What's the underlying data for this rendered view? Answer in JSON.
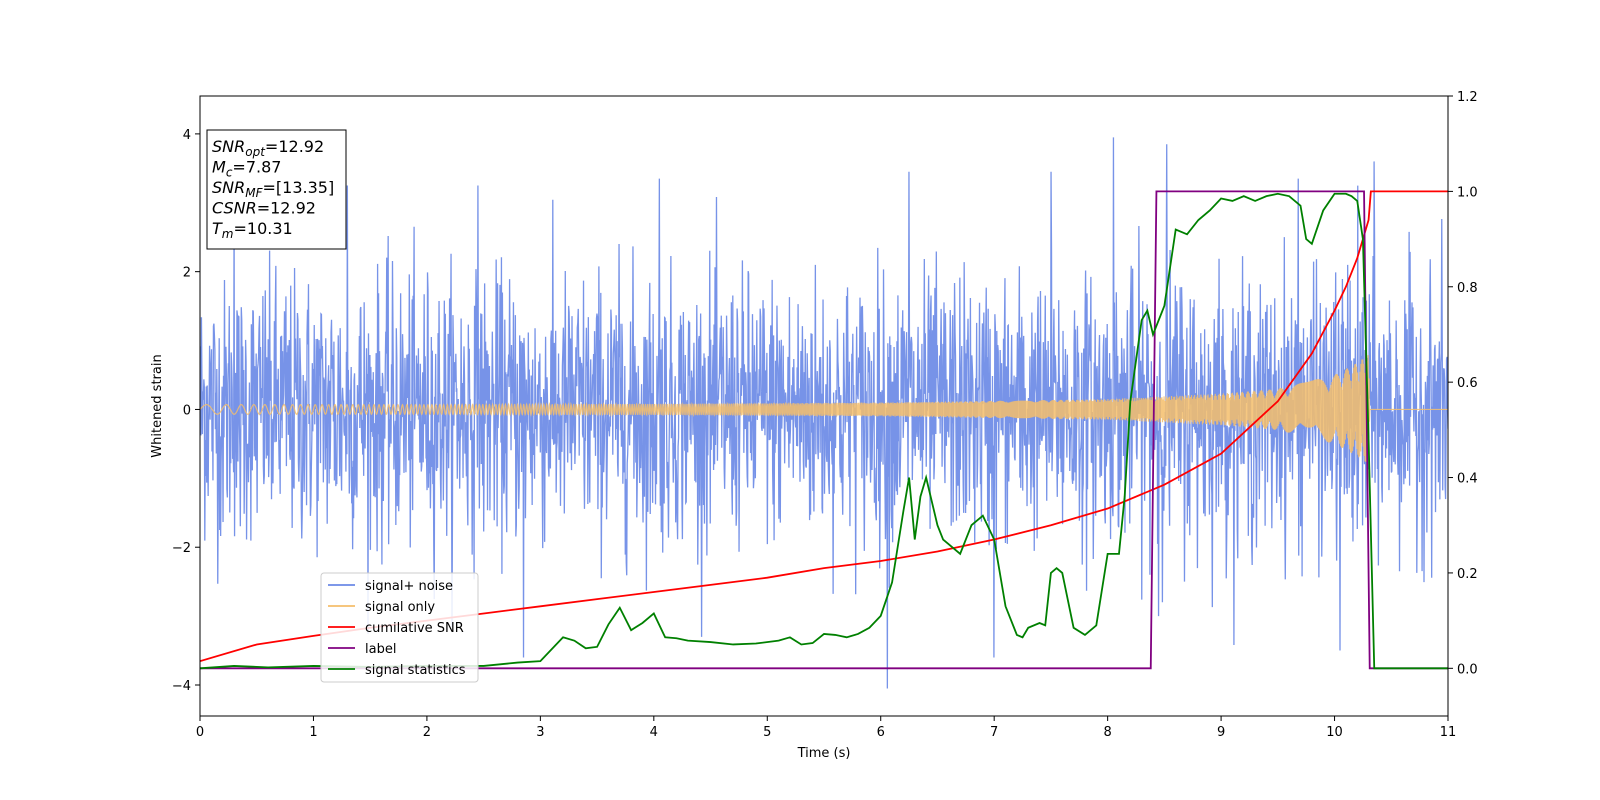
{
  "chart_data": {
    "type": "line",
    "xlabel": "Time (s)",
    "ylabel": "Whitened strain",
    "xlim": [
      0,
      11
    ],
    "ylim": [
      -4.45,
      4.55
    ],
    "y2lim": [
      -0.1,
      1.2
    ],
    "xticks": [
      0,
      1,
      2,
      3,
      4,
      5,
      6,
      7,
      8,
      9,
      10,
      11
    ],
    "yticks": [
      -4,
      -2,
      0,
      2,
      4
    ],
    "y2ticks": [
      0.0,
      0.2,
      0.4,
      0.6,
      0.8,
      1.0,
      1.2
    ],
    "y2tick_labels": [
      "0.0",
      "0.2",
      "0.4",
      "0.6",
      "0.8",
      "1.0",
      "1.2"
    ],
    "grid": false,
    "legend_position": "lower-left",
    "legend": [
      {
        "label": "signal+ noise",
        "color": "#6b8ae6"
      },
      {
        "label": "signal only",
        "color": "#f5be6b"
      },
      {
        "label": "cumilative SNR",
        "color": "#ff0000"
      },
      {
        "label": "label",
        "color": "#800080"
      },
      {
        "label": "signal statistics",
        "color": "#008000"
      }
    ],
    "annotation": [
      {
        "sym": "SNR",
        "sub": "opt",
        "val": "=12.92"
      },
      {
        "sym": "M",
        "sub": "c",
        "val": "=7.87"
      },
      {
        "sym": "SNR",
        "sub": "MF",
        "val": "=[13.35]"
      },
      {
        "sym": "CSNR",
        "sub": "",
        "val": "=12.92"
      },
      {
        "sym": "T",
        "sub": "m",
        "val": "=10.31"
      }
    ],
    "series": [
      {
        "name": "signal+ noise",
        "axis": "left",
        "color": "#6b8ae6",
        "description_stats": {
          "noise_std": 0.95,
          "max_spike": 3.95,
          "min_spike": -4.05
        },
        "peaks": [
          {
            "x": 0.3,
            "y": 3.05
          },
          {
            "x": 1.3,
            "y": 3.25
          },
          {
            "x": 2.45,
            "y": 3.25
          },
          {
            "x": 4.05,
            "y": 3.35
          },
          {
            "x": 6.25,
            "y": 3.45
          },
          {
            "x": 7.5,
            "y": 3.45
          },
          {
            "x": 8.05,
            "y": 3.95
          },
          {
            "x": 8.52,
            "y": 3.85
          },
          {
            "x": 9.68,
            "y": 3.35
          },
          {
            "x": 10.35,
            "y": 3.6
          },
          {
            "x": 6.06,
            "y": -4.05
          },
          {
            "x": 2.85,
            "y": -3.6
          },
          {
            "x": 7.0,
            "y": -3.6
          },
          {
            "x": 8.45,
            "y": -3.0
          },
          {
            "x": 10.05,
            "y": -3.5
          }
        ]
      },
      {
        "name": "signal only",
        "axis": "left",
        "color": "#f5be6b",
        "amplitude_envelope": {
          "x": [
            0,
            2,
            4,
            6,
            8,
            9,
            9.5,
            10,
            10.2,
            10.3,
            10.31,
            11
          ],
          "y": [
            0.07,
            0.07,
            0.08,
            0.1,
            0.15,
            0.23,
            0.3,
            0.5,
            0.68,
            0.8,
            0.0,
            0.0
          ]
        }
      },
      {
        "name": "cumilative SNR",
        "axis": "right",
        "color": "#ff0000",
        "x": [
          0,
          0.5,
          1,
          1.5,
          2,
          2.5,
          3,
          3.5,
          4,
          4.5,
          5,
          5.5,
          6,
          6.5,
          7,
          7.5,
          8,
          8.5,
          9,
          9.5,
          9.8,
          10,
          10.1,
          10.2,
          10.25,
          10.3,
          10.31,
          10.32,
          11
        ],
        "values": [
          0.015,
          0.05,
          0.068,
          0.085,
          0.1,
          0.115,
          0.13,
          0.145,
          0.16,
          0.175,
          0.19,
          0.21,
          0.225,
          0.245,
          0.27,
          0.3,
          0.335,
          0.385,
          0.45,
          0.56,
          0.66,
          0.75,
          0.8,
          0.86,
          0.9,
          0.94,
          0.97,
          1.0,
          1.0
        ]
      },
      {
        "name": "label",
        "axis": "right",
        "color": "#800080",
        "x": [
          0,
          8.38,
          8.43,
          10.26,
          10.31,
          11
        ],
        "values": [
          0.0,
          0.0,
          1.0,
          1.0,
          0.0,
          0.0
        ]
      },
      {
        "name": "signal statistics",
        "axis": "right",
        "color": "#008000",
        "x": [
          0,
          0.3,
          0.6,
          1.0,
          1.5,
          2.0,
          2.5,
          2.8,
          3.0,
          3.2,
          3.3,
          3.4,
          3.5,
          3.6,
          3.7,
          3.8,
          3.9,
          4.0,
          4.1,
          4.2,
          4.3,
          4.5,
          4.7,
          4.9,
          5.1,
          5.2,
          5.3,
          5.4,
          5.5,
          5.6,
          5.7,
          5.8,
          5.9,
          6.0,
          6.1,
          6.2,
          6.25,
          6.3,
          6.35,
          6.4,
          6.5,
          6.55,
          6.6,
          6.7,
          6.8,
          6.9,
          7.0,
          7.1,
          7.2,
          7.25,
          7.3,
          7.4,
          7.45,
          7.5,
          7.55,
          7.6,
          7.7,
          7.8,
          7.9,
          8.0,
          8.1,
          8.15,
          8.2,
          8.3,
          8.35,
          8.4,
          8.45,
          8.5,
          8.6,
          8.7,
          8.8,
          8.9,
          9.0,
          9.1,
          9.2,
          9.3,
          9.4,
          9.5,
          9.6,
          9.7,
          9.75,
          9.8,
          9.9,
          10.0,
          10.1,
          10.15,
          10.2,
          10.25,
          10.3,
          10.35,
          10.5,
          11.0
        ],
        "values": [
          0.0,
          0.005,
          0.002,
          0.005,
          0.003,
          0.005,
          0.005,
          0.012,
          0.015,
          0.065,
          0.058,
          0.042,
          0.045,
          0.092,
          0.127,
          0.08,
          0.095,
          0.115,
          0.065,
          0.063,
          0.058,
          0.055,
          0.05,
          0.052,
          0.058,
          0.065,
          0.05,
          0.053,
          0.072,
          0.07,
          0.065,
          0.072,
          0.085,
          0.11,
          0.18,
          0.33,
          0.4,
          0.27,
          0.36,
          0.4,
          0.3,
          0.27,
          0.26,
          0.24,
          0.3,
          0.32,
          0.27,
          0.13,
          0.07,
          0.065,
          0.085,
          0.095,
          0.09,
          0.2,
          0.21,
          0.2,
          0.085,
          0.07,
          0.09,
          0.24,
          0.24,
          0.36,
          0.56,
          0.73,
          0.75,
          0.7,
          0.73,
          0.76,
          0.92,
          0.91,
          0.94,
          0.96,
          0.985,
          0.98,
          0.99,
          0.98,
          0.99,
          0.995,
          0.99,
          0.97,
          0.9,
          0.89,
          0.96,
          0.995,
          0.995,
          0.99,
          0.98,
          0.9,
          0.48,
          0.0,
          0.0,
          0.0
        ]
      }
    ]
  }
}
